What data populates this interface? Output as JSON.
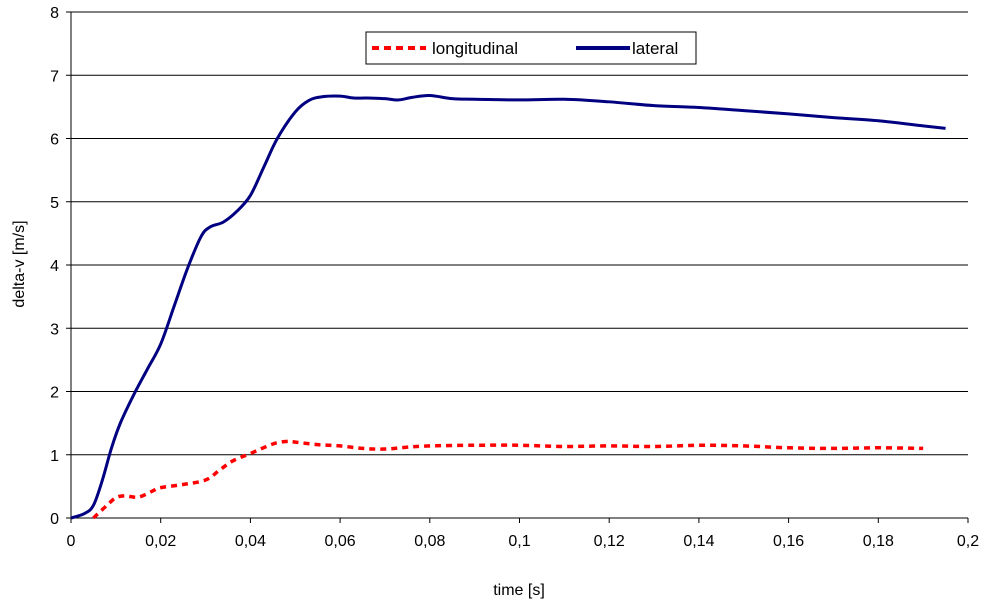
{
  "chart_data": {
    "type": "line",
    "title": "",
    "xlabel": "time [s]",
    "ylabel": "delta-v [m/s]",
    "xlim": [
      0,
      0.2
    ],
    "ylim": [
      0,
      8
    ],
    "x_ticks": [
      "0",
      "0,02",
      "0,04",
      "0,06",
      "0,08",
      "0,1",
      "0,12",
      "0,14",
      "0,16",
      "0,18",
      "0,2"
    ],
    "y_ticks": [
      "0",
      "1",
      "2",
      "3",
      "4",
      "5",
      "6",
      "7",
      "8"
    ],
    "grid": "horizontal",
    "legend_position": "top-center",
    "series": [
      {
        "name": "longitudinal",
        "color": "#ff0000",
        "style": "dashed",
        "x": [
          0.005,
          0.008,
          0.01,
          0.012,
          0.015,
          0.018,
          0.02,
          0.025,
          0.03,
          0.033,
          0.036,
          0.04,
          0.045,
          0.048,
          0.05,
          0.055,
          0.06,
          0.065,
          0.07,
          0.075,
          0.08,
          0.09,
          0.1,
          0.11,
          0.12,
          0.13,
          0.14,
          0.15,
          0.16,
          0.17,
          0.18,
          0.19
        ],
        "y": [
          0.0,
          0.2,
          0.32,
          0.35,
          0.33,
          0.42,
          0.48,
          0.53,
          0.6,
          0.75,
          0.9,
          1.02,
          1.17,
          1.21,
          1.2,
          1.16,
          1.14,
          1.1,
          1.09,
          1.12,
          1.14,
          1.15,
          1.15,
          1.13,
          1.14,
          1.13,
          1.15,
          1.14,
          1.11,
          1.1,
          1.11,
          1.1
        ]
      },
      {
        "name": "lateral",
        "color": "#000080",
        "style": "solid",
        "x": [
          0.0,
          0.003,
          0.005,
          0.007,
          0.009,
          0.011,
          0.014,
          0.017,
          0.02,
          0.023,
          0.026,
          0.029,
          0.031,
          0.034,
          0.037,
          0.04,
          0.043,
          0.046,
          0.05,
          0.053,
          0.056,
          0.06,
          0.063,
          0.066,
          0.07,
          0.073,
          0.076,
          0.08,
          0.085,
          0.09,
          0.1,
          0.11,
          0.12,
          0.13,
          0.14,
          0.15,
          0.16,
          0.17,
          0.18,
          0.19,
          0.195
        ],
        "y": [
          0.0,
          0.07,
          0.2,
          0.6,
          1.1,
          1.5,
          1.95,
          2.35,
          2.75,
          3.35,
          3.95,
          4.45,
          4.6,
          4.68,
          4.85,
          5.1,
          5.55,
          6.0,
          6.42,
          6.6,
          6.66,
          6.67,
          6.64,
          6.64,
          6.63,
          6.61,
          6.65,
          6.68,
          6.63,
          6.62,
          6.61,
          6.62,
          6.58,
          6.52,
          6.49,
          6.44,
          6.39,
          6.33,
          6.28,
          6.2,
          6.16
        ]
      }
    ]
  }
}
